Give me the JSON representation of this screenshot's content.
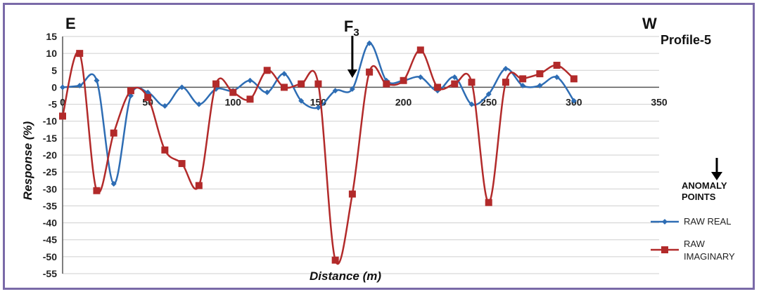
{
  "chart_data": {
    "type": "line",
    "title": "Profile-5",
    "xlabel": "Distance (m)",
    "ylabel": "Response (%)",
    "xlim": [
      0,
      350
    ],
    "ylim": [
      -55,
      15
    ],
    "xticks": [
      0,
      50,
      100,
      150,
      200,
      250,
      300,
      350
    ],
    "yticks": [
      15,
      10,
      5,
      0,
      -5,
      -10,
      -15,
      -20,
      -25,
      -30,
      -35,
      -40,
      -45,
      -50,
      -55
    ],
    "grid": true,
    "direction_labels": {
      "left": "E",
      "right": "W"
    },
    "anomaly": {
      "label": "F",
      "subscript": "3",
      "x": 170
    },
    "legend_anomaly_label": "ANOMALY POINTS",
    "series": [
      {
        "name": "RAW REAL",
        "color": "#2e6db4",
        "marker": "diamond",
        "x": [
          0,
          10,
          20,
          30,
          40,
          50,
          60,
          70,
          80,
          90,
          100,
          110,
          120,
          130,
          140,
          150,
          160,
          170,
          180,
          190,
          200,
          210,
          220,
          230,
          240,
          250,
          260,
          270,
          280,
          290,
          300
        ],
        "y": [
          0,
          0.5,
          2,
          -28.5,
          -2.5,
          -1.5,
          -5.5,
          0,
          -5,
          -0.5,
          -1,
          2,
          -1.5,
          4,
          -4,
          -6,
          -1,
          -0.5,
          13,
          2,
          2,
          3,
          -1,
          3,
          -5,
          -2,
          5.5,
          0.5,
          0.5,
          3,
          -4
        ]
      },
      {
        "name": "RAW IMAGINARY",
        "color": "#b22a2a",
        "marker": "square",
        "x": [
          0,
          10,
          20,
          30,
          40,
          50,
          60,
          70,
          80,
          90,
          100,
          110,
          120,
          130,
          140,
          150,
          160,
          170,
          180,
          190,
          200,
          210,
          220,
          230,
          240,
          250,
          260,
          270,
          280,
          290,
          300
        ],
        "y": [
          -8.5,
          10,
          -30.5,
          -13.5,
          -1,
          -3,
          -18.5,
          -22.5,
          -29,
          1,
          -1.5,
          -3.5,
          5,
          0,
          1,
          1,
          -51,
          -31.5,
          4.5,
          1,
          2,
          11,
          0,
          1,
          1.5,
          -34,
          1.5,
          2.5,
          4,
          6.5,
          2.5
        ]
      }
    ]
  }
}
